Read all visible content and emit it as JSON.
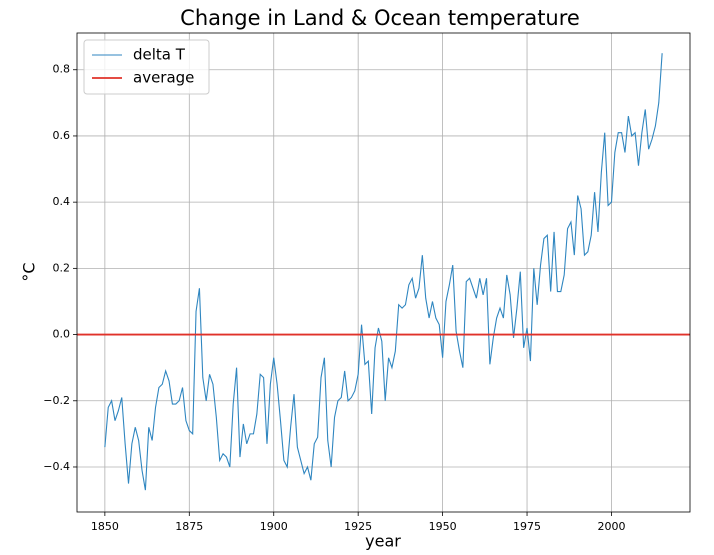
{
  "chart_data": {
    "type": "line",
    "title": "Change in Land & Ocean temperature",
    "xlabel": "year",
    "ylabel": "°C",
    "grid": true,
    "legend": "upper left",
    "xlim": [
      1841.75,
      2023.25
    ],
    "ylim": [
      -0.536,
      0.911
    ],
    "xticks": [
      1850,
      1875,
      1900,
      1925,
      1950,
      1975,
      2000
    ],
    "yticks": [
      {
        "value": -0.4,
        "label": "−0.4"
      },
      {
        "value": -0.2,
        "label": "−0.2"
      },
      {
        "value": 0,
        "label": "0.0"
      },
      0.2,
      0.4,
      0.6,
      0.8
    ],
    "series": [
      {
        "name": "delta T",
        "color": "#2f86c0",
        "x": [
          1850,
          1851,
          1852,
          1853,
          1854,
          1855,
          1856,
          1857,
          1858,
          1859,
          1860,
          1861,
          1862,
          1863,
          1864,
          1865,
          1866,
          1867,
          1868,
          1869,
          1870,
          1871,
          1872,
          1873,
          1874,
          1875,
          1876,
          1877,
          1878,
          1879,
          1880,
          1881,
          1882,
          1883,
          1884,
          1885,
          1886,
          1887,
          1888,
          1889,
          1890,
          1891,
          1892,
          1893,
          1894,
          1895,
          1896,
          1897,
          1898,
          1899,
          1900,
          1901,
          1902,
          1903,
          1904,
          1905,
          1906,
          1907,
          1908,
          1909,
          1910,
          1911,
          1912,
          1913,
          1914,
          1915,
          1916,
          1917,
          1918,
          1919,
          1920,
          1921,
          1922,
          1923,
          1924,
          1925,
          1926,
          1927,
          1928,
          1929,
          1930,
          1931,
          1932,
          1933,
          1934,
          1935,
          1936,
          1937,
          1938,
          1939,
          1940,
          1941,
          1942,
          1943,
          1944,
          1945,
          1946,
          1947,
          1948,
          1949,
          1950,
          1951,
          1952,
          1953,
          1954,
          1955,
          1956,
          1957,
          1958,
          1959,
          1960,
          1961,
          1962,
          1963,
          1964,
          1965,
          1966,
          1967,
          1968,
          1969,
          1970,
          1971,
          1972,
          1973,
          1974,
          1975,
          1976,
          1977,
          1978,
          1979,
          1980,
          1981,
          1982,
          1983,
          1984,
          1985,
          1986,
          1987,
          1988,
          1989,
          1990,
          1991,
          1992,
          1993,
          1994,
          1995,
          1996,
          1997,
          1998,
          1999,
          2000,
          2001,
          2002,
          2003,
          2004,
          2005,
          2006,
          2007,
          2008,
          2009,
          2010,
          2011,
          2012,
          2013,
          2014,
          2015
        ],
        "values": [
          -0.34,
          -0.22,
          -0.2,
          -0.26,
          -0.23,
          -0.19,
          -0.33,
          -0.45,
          -0.33,
          -0.28,
          -0.32,
          -0.41,
          -0.47,
          -0.28,
          -0.32,
          -0.22,
          -0.16,
          -0.15,
          -0.11,
          -0.14,
          -0.21,
          -0.21,
          -0.2,
          -0.16,
          -0.26,
          -0.29,
          -0.3,
          0.07,
          0.14,
          -0.13,
          -0.2,
          -0.12,
          -0.15,
          -0.25,
          -0.38,
          -0.36,
          -0.37,
          -0.4,
          -0.21,
          -0.1,
          -0.37,
          -0.27,
          -0.33,
          -0.3,
          -0.3,
          -0.24,
          -0.12,
          -0.13,
          -0.33,
          -0.15,
          -0.07,
          -0.15,
          -0.26,
          -0.38,
          -0.4,
          -0.28,
          -0.18,
          -0.34,
          -0.38,
          -0.42,
          -0.4,
          -0.44,
          -0.33,
          -0.31,
          -0.13,
          -0.07,
          -0.32,
          -0.4,
          -0.25,
          -0.2,
          -0.19,
          -0.11,
          -0.2,
          -0.19,
          -0.17,
          -0.12,
          0.03,
          -0.09,
          -0.08,
          -0.24,
          -0.04,
          0.02,
          -0.02,
          -0.2,
          -0.07,
          -0.1,
          -0.05,
          0.09,
          0.08,
          0.09,
          0.15,
          0.17,
          0.11,
          0.14,
          0.24,
          0.11,
          0.05,
          0.1,
          0.05,
          0.03,
          -0.07,
          0.1,
          0.15,
          0.21,
          0.01,
          -0.05,
          -0.1,
          0.16,
          0.17,
          0.14,
          0.11,
          0.17,
          0.12,
          0.17,
          -0.09,
          -0.01,
          0.05,
          0.08,
          0.05,
          0.18,
          0.12,
          -0.01,
          0.08,
          0.19,
          -0.04,
          0.02,
          -0.08,
          0.2,
          0.09,
          0.21,
          0.29,
          0.3,
          0.13,
          0.31,
          0.13,
          0.13,
          0.18,
          0.32,
          0.34,
          0.24,
          0.42,
          0.38,
          0.24,
          0.25,
          0.3,
          0.43,
          0.31,
          0.49,
          0.61,
          0.39,
          0.4,
          0.55,
          0.61,
          0.61,
          0.55,
          0.66,
          0.6,
          0.61,
          0.51,
          0.61,
          0.68,
          0.56,
          0.59,
          0.63,
          0.7,
          0.85
        ]
      },
      {
        "name": "average",
        "color": "#e0322a",
        "values": [
          0
        ]
      }
    ]
  }
}
